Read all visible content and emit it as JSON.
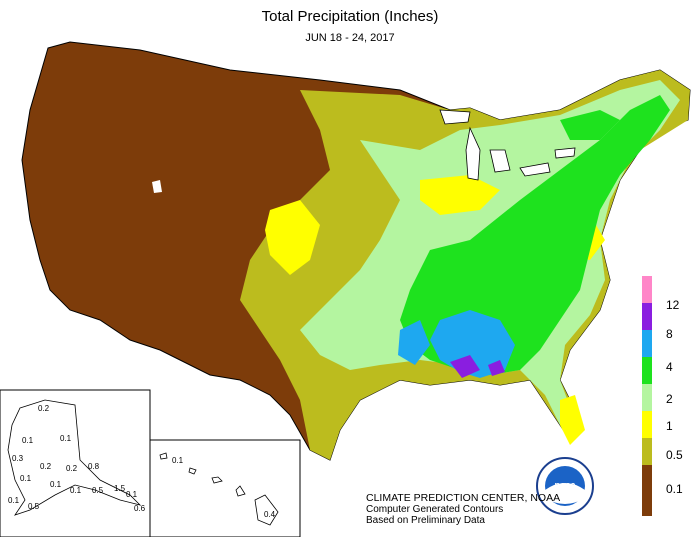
{
  "header": {
    "title": "Total Precipitation (Inches)",
    "date_range": "JUN 18 - 24, 2017"
  },
  "legend": {
    "items": [
      {
        "label": "12",
        "color": "#ff86c8"
      },
      {
        "label": "8",
        "color": "#8a1ee0"
      },
      {
        "label": "4",
        "color": "#1ea8f0"
      },
      {
        "label": "2",
        "color": "#1ee21e"
      },
      {
        "label": "1",
        "color": "#b4f5a0"
      },
      {
        "label": "0.5",
        "color": "#ffff00"
      },
      {
        "label": "0.1",
        "color": "#bcbc1e"
      },
      {
        "label": "",
        "color": "#7d3c0a"
      }
    ]
  },
  "credits": {
    "line1": "CLIMATE PREDICTION CENTER, NOAA",
    "line2": "Computer Generated Contours",
    "line3": "Based on Preliminary Data"
  },
  "logo": {
    "text": "noaa"
  },
  "alaska_inset": {
    "labels": [
      "0.2",
      "0.1",
      "0.1",
      "0.3",
      "0.2",
      "0.2",
      "0.1",
      "0.1",
      "0.8",
      "0.5",
      "1.5",
      "0.1",
      "0.1",
      "0.6",
      "0.5",
      "0.1"
    ]
  },
  "hawaii_inset": {
    "labels": [
      "0.1",
      "0.4"
    ]
  }
}
